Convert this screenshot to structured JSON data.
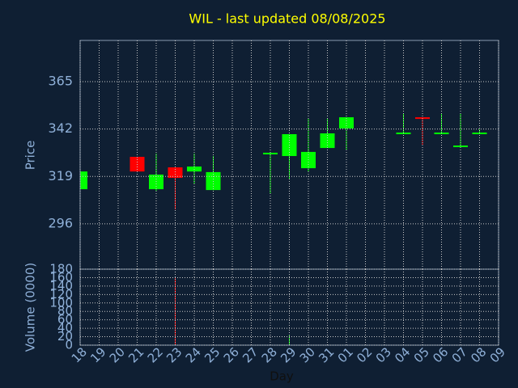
{
  "chart_data": {
    "type": "candlestick",
    "title": "WIL - last updated 08/08/2025",
    "xlabel": "Day",
    "ylabel": "Price",
    "volume_label": "Volume (0000)",
    "categories": [
      "18",
      "19",
      "20",
      "21",
      "22",
      "23",
      "24",
      "25",
      "26",
      "27",
      "28",
      "29",
      "30",
      "31",
      "01",
      "02",
      "03",
      "04",
      "05",
      "06",
      "07",
      "08",
      "09"
    ],
    "open": [
      312.8,
      null,
      null,
      328.5,
      312.8,
      323.4,
      321.4,
      312.4,
      null,
      null,
      329.7,
      328.9,
      323.0,
      332.8,
      342.3,
      null,
      null,
      339.5,
      347.7,
      339.5,
      333.6,
      339.5,
      null
    ],
    "high": [
      321.4,
      null,
      null,
      328.5,
      330.1,
      323.4,
      330.1,
      328.9,
      null,
      null,
      330.5,
      339.5,
      347.0,
      347.0,
      347.7,
      null,
      null,
      349.3,
      347.7,
      349.7,
      349.7,
      341.9,
      null
    ],
    "low": [
      312.8,
      null,
      null,
      321.4,
      311.7,
      303.0,
      315.2,
      312.4,
      null,
      null,
      310.9,
      317.5,
      321.4,
      332.8,
      331.7,
      null,
      null,
      339.5,
      334.0,
      339.5,
      333.6,
      339.5,
      null
    ],
    "close": [
      321.4,
      null,
      null,
      321.4,
      319.9,
      318.3,
      323.8,
      321.1,
      null,
      null,
      330.5,
      339.5,
      330.9,
      339.9,
      347.7,
      null,
      null,
      340.3,
      347.0,
      340.3,
      334.0,
      340.3,
      null
    ],
    "volume": [
      1,
      null,
      null,
      2,
      1,
      159,
      1,
      1,
      null,
      null,
      1,
      25,
      1,
      2,
      1,
      null,
      null,
      1,
      1,
      1,
      1,
      1,
      null
    ],
    "up_color": "#00ff00",
    "down_color": "#ff0000",
    "ylim": [
      274,
      385
    ],
    "yticks": [
      296,
      319,
      342,
      365
    ],
    "volume_ylim": [
      0,
      180
    ],
    "volume_yticks": [
      0,
      20,
      40,
      60,
      80,
      100,
      120,
      140,
      160,
      180
    ],
    "grid": true
  }
}
